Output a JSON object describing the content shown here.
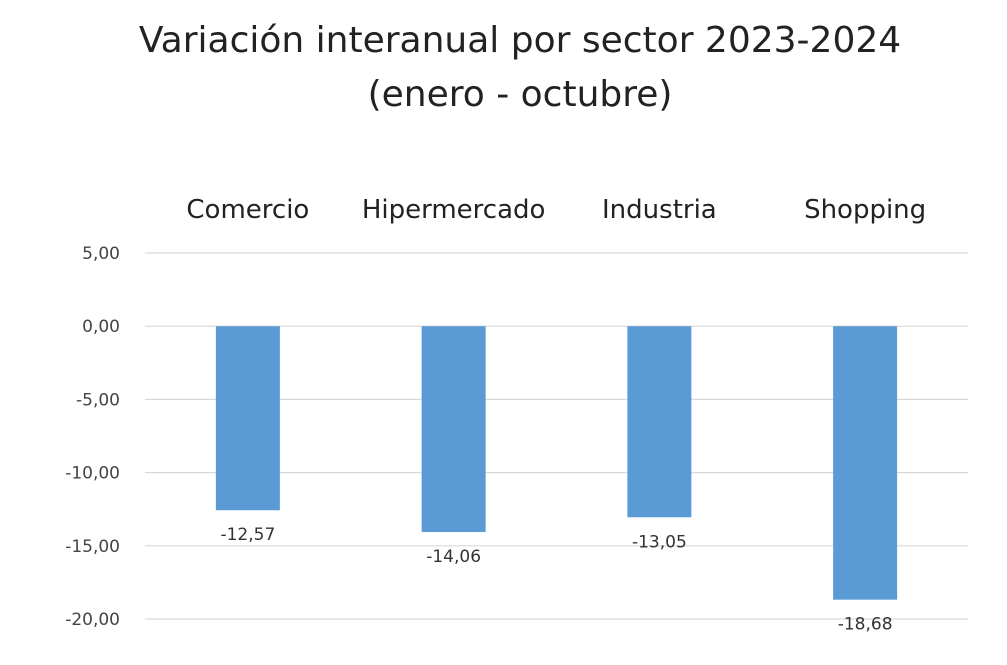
{
  "chart_data": {
    "type": "bar",
    "title": "Variación interanual por sector 2023-2024",
    "subtitle": "(enero - octubre)",
    "categories": [
      "Comercio",
      "Hipermercado",
      "Industria",
      "Shopping"
    ],
    "series": [
      {
        "values": [
          -12.57,
          -14.06,
          -13.05,
          -18.68
        ],
        "color": "#5b9bd5"
      }
    ],
    "data_labels": [
      "-12,57",
      "-14,06",
      "-13,05",
      "-18,68"
    ],
    "ylim": [
      -20,
      5
    ],
    "yticks": [
      5,
      0,
      -5,
      -10,
      -15,
      -20
    ],
    "ytick_labels": [
      "5,00",
      "0,00",
      "-5,00",
      "-10,00",
      "-15,00",
      "-20,00"
    ],
    "category_axis_position": "top",
    "grid": true,
    "legend": "none"
  }
}
